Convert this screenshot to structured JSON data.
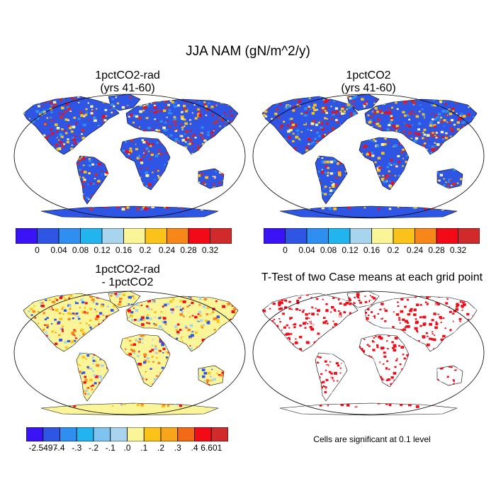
{
  "title": "JJA NAM (gN/m^2/y)",
  "panels": [
    {
      "title_line1": "1pctCO2-rad",
      "title_line2": "(yrs 41-60)"
    },
    {
      "title_line1": "1pctCO2",
      "title_line2": "(yrs 41-60)"
    },
    {
      "title_line1": "1pctCO2-rad",
      "title_line2": "- 1pctCO2"
    },
    {
      "title_line1": "T-Test of two Case means at each grid point",
      "title_line2": ""
    }
  ],
  "colorbar_abs": {
    "labels": [
      "0",
      "0.04",
      "0.08",
      "0.12",
      "0.16",
      "0.2",
      "0.24",
      "0.28",
      "0.32"
    ],
    "colors": [
      "#3b14f5",
      "#2e55e4",
      "#2f8ff0",
      "#22b4ee",
      "#a8d4ee",
      "#fbf59a",
      "#fbc21a",
      "#f7871a",
      "#f20a16",
      "#d02a2a"
    ]
  },
  "colorbar_diff": {
    "labels": [
      "-2.5497",
      "-.4",
      "-.3",
      "-.2",
      "-.1",
      ".0",
      ".1",
      ".2",
      ".3",
      ".4",
      "6.601"
    ],
    "colors": [
      "#3b14f5",
      "#2e55e4",
      "#2f8ff0",
      "#22b4ee",
      "#7fc4f0",
      "#a8d4ee",
      "#fbf59a",
      "#fbc21a",
      "#f7a51a",
      "#f26a16",
      "#f20a16",
      "#d02a2a"
    ]
  },
  "map_colors": {
    "ocean": "#ffffff",
    "land_base_abs": "#2e55e4",
    "land_base_diff": "#fbf59a",
    "significance": "#f20a16",
    "coastline": "#000000"
  },
  "significance_note": "Cells are significant at 0.1 level"
}
